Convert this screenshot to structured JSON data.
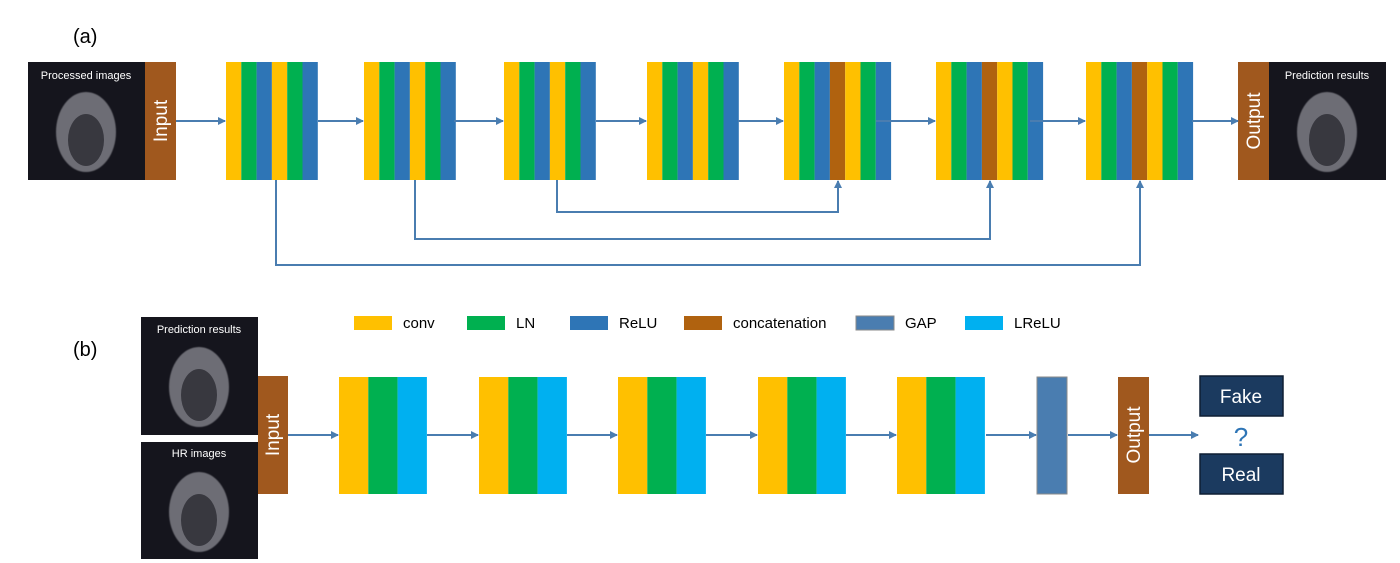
{
  "panel_a": {
    "label": "(a)",
    "input_image_caption": "Processed images",
    "input_label": "Input",
    "output_label": "Output",
    "output_image_caption": "Prediction results",
    "blocks": [
      [
        "conv",
        "LN",
        "ReLU",
        "conv",
        "LN",
        "ReLU"
      ],
      [
        "conv",
        "LN",
        "ReLU",
        "conv",
        "LN",
        "ReLU"
      ],
      [
        "conv",
        "LN",
        "ReLU",
        "conv",
        "LN",
        "ReLU"
      ],
      [
        "conv",
        "LN",
        "ReLU",
        "conv",
        "LN",
        "ReLU"
      ],
      [
        "conv",
        "LN",
        "ReLU",
        "concatenation",
        "conv",
        "LN",
        "ReLU"
      ],
      [
        "conv",
        "LN",
        "ReLU",
        "concatenation",
        "conv",
        "LN",
        "ReLU"
      ],
      [
        "conv",
        "LN",
        "ReLU",
        "concatenation",
        "conv",
        "LN",
        "ReLU"
      ]
    ],
    "skip_connections": [
      {
        "from_block": 1,
        "to_block": 7
      },
      {
        "from_block": 2,
        "to_block": 6
      },
      {
        "from_block": 3,
        "to_block": 5
      }
    ]
  },
  "legend": {
    "items": [
      {
        "name": "conv",
        "color": "#FFC000"
      },
      {
        "name": "LN",
        "color": "#00B050"
      },
      {
        "name": "ReLU",
        "color": "#2E75B6"
      },
      {
        "name": "concatenation",
        "color": "#B0620F"
      },
      {
        "name": "GAP",
        "color": "#4A7DB0"
      },
      {
        "name": "LReLU",
        "color": "#00B0F0"
      }
    ]
  },
  "panel_b": {
    "label": "(b)",
    "input_image_captions": [
      "Prediction results",
      "HR images"
    ],
    "input_label": "Input",
    "blocks": [
      [
        "conv",
        "LN",
        "LReLU"
      ],
      [
        "conv",
        "LN",
        "LReLU"
      ],
      [
        "conv",
        "LN",
        "LReLU"
      ],
      [
        "conv",
        "LN",
        "LReLU"
      ],
      [
        "conv",
        "LN",
        "LReLU"
      ]
    ],
    "gap_layer": "GAP",
    "output_label": "Output",
    "decisions": [
      "Fake",
      "Real"
    ],
    "question_mark": "?"
  },
  "colors": {
    "orange_box": "#A0581E",
    "decision_box": "#1B3A5F",
    "arrow": "#4A7DB0",
    "image_bg": "#15151d"
  }
}
